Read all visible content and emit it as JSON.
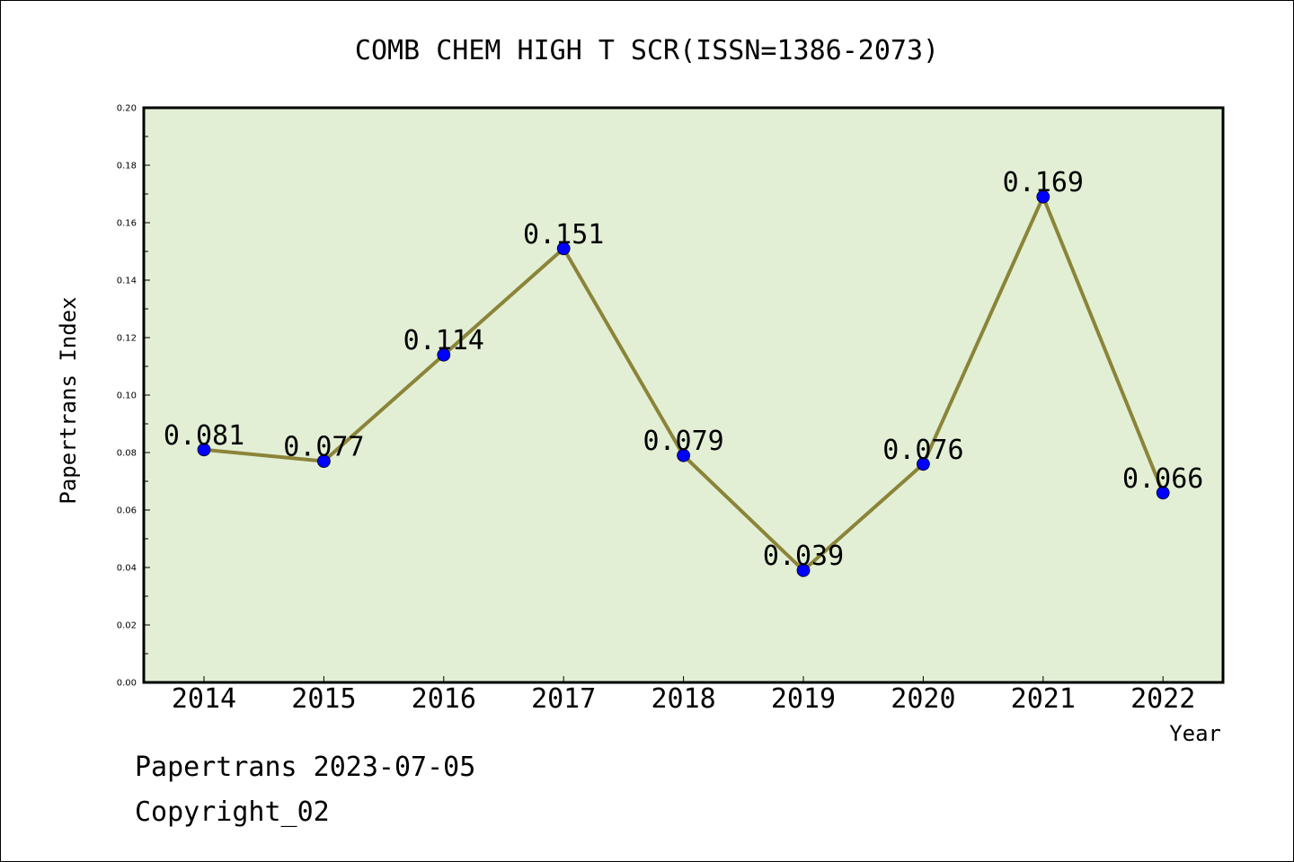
{
  "chart_data": {
    "type": "line",
    "title": "COMB CHEM HIGH T SCR(ISSN=1386-2073)",
    "xlabel": "Year",
    "ylabel": "Papertrans Index",
    "categories": [
      "2014",
      "2015",
      "2016",
      "2017",
      "2018",
      "2019",
      "2020",
      "2021",
      "2022"
    ],
    "values": [
      0.081,
      0.077,
      0.114,
      0.151,
      0.079,
      0.039,
      0.076,
      0.169,
      0.066
    ],
    "data_labels": [
      "0.081",
      "0.077",
      "0.114",
      "0.151",
      "0.079",
      "0.039",
      "0.076",
      "0.169",
      "0.066"
    ],
    "ylim": [
      0,
      0.2
    ],
    "yticks": [
      "0.00",
      "0.02",
      "0.04",
      "0.06",
      "0.08",
      "0.10",
      "0.12",
      "0.14",
      "0.16",
      "0.18",
      "0.20"
    ],
    "grid": false,
    "colors": {
      "plot_background": "#e2efd5",
      "line": "#8b8438",
      "marker": "#0000ff"
    }
  },
  "footer": {
    "line1": "Papertrans 2023-07-05",
    "line2": "Copyright_02"
  }
}
